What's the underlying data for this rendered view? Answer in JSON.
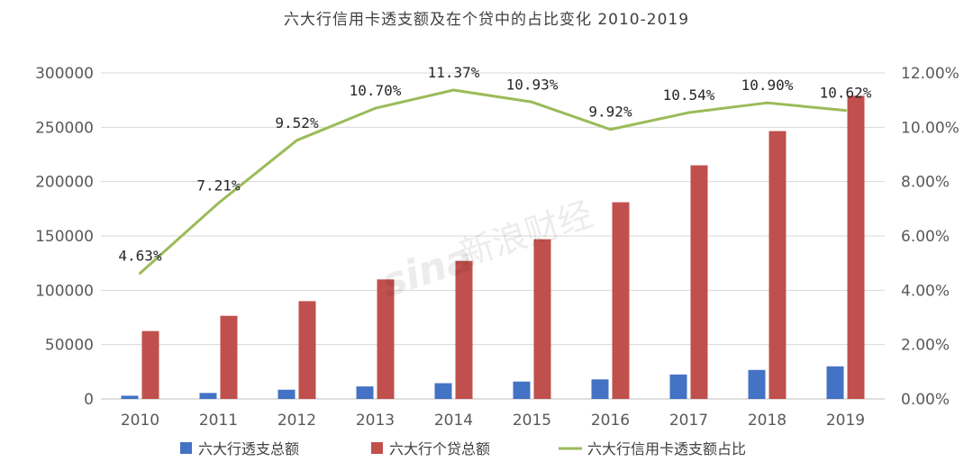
{
  "chart_data": {
    "type": "bar",
    "title": "六大行信用卡透支额及在个贷中的占比变化 2010-2019",
    "categories": [
      "2010",
      "2011",
      "2012",
      "2013",
      "2014",
      "2015",
      "2016",
      "2017",
      "2018",
      "2019"
    ],
    "series": [
      {
        "name": "六大行透支总额",
        "type": "bar",
        "axis": "left",
        "color": "#4472C4",
        "values": [
          3000,
          5500,
          8500,
          11500,
          14500,
          16000,
          18000,
          22500,
          26700,
          30000
        ]
      },
      {
        "name": "六大行个贷总额",
        "type": "bar",
        "axis": "left",
        "color": "#C0504D",
        "values": [
          62500,
          76500,
          90000,
          110000,
          127000,
          147000,
          181000,
          215000,
          246500,
          279000
        ]
      },
      {
        "name": "六大行信用卡透支额占比",
        "type": "line",
        "axis": "right",
        "color": "#9BBB59",
        "values": [
          4.63,
          7.21,
          9.52,
          10.7,
          11.37,
          10.93,
          9.92,
          10.54,
          10.9,
          10.62
        ],
        "labels": [
          "4.63%",
          "7.21%",
          "9.52%",
          "10.70%",
          "11.37%",
          "10.93%",
          "9.92%",
          "10.54%",
          "10.90%",
          "10.62%"
        ]
      }
    ],
    "y_left": {
      "ylim": [
        0,
        300000
      ],
      "ticks": [
        "0",
        "50000",
        "100000",
        "150000",
        "200000",
        "250000",
        "300000"
      ]
    },
    "y_right": {
      "ylim": [
        0,
        12
      ],
      "ticks": [
        "0.00%",
        "2.00%",
        "4.00%",
        "6.00%",
        "8.00%",
        "10.00%",
        "12.00%"
      ]
    },
    "grid": true,
    "legend_position": "bottom"
  },
  "watermark": {
    "text": "新浪财经",
    "logo": "sina"
  }
}
